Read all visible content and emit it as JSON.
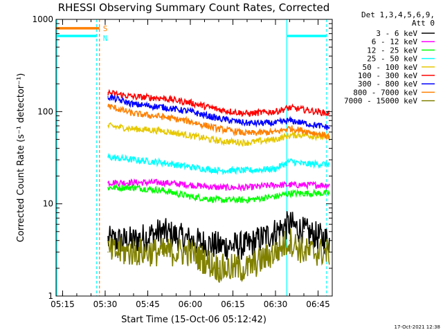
{
  "chart_data": {
    "type": "line",
    "title": "RHESSI Observing Summary Count Rates, Corrected",
    "xlabel": "Start Time (15-Oct-06 05:12:42)",
    "ylabel": "Corrected Count Rate (s⁻¹ detector⁻¹)",
    "y_scale": "log",
    "ylim": [
      1,
      1000
    ],
    "xlim": [
      "05:12:42",
      "06:50:00"
    ],
    "x_ticks": [
      "05:15",
      "05:30",
      "05:45",
      "06:00",
      "06:15",
      "06:30",
      "06:45"
    ],
    "y_ticks": [
      "1",
      "10",
      "100",
      "1000"
    ],
    "grid": false,
    "legend_position": "top-right",
    "legend_header": [
      "Det 1,3,4,5,6,9,",
      "Att 0"
    ],
    "series": [
      {
        "name": "3 - 6 keV",
        "color": "#000000",
        "x": [
          "05:31",
          "05:40",
          "05:50",
          "06:00",
          "06:10",
          "06:20",
          "06:30",
          "06:35",
          "06:40",
          "06:49"
        ],
        "values": [
          4,
          4,
          5,
          4,
          3.5,
          3.5,
          5,
          6,
          5,
          4
        ]
      },
      {
        "name": "6 - 12 keV",
        "color": "#ff00ff",
        "x": [
          "05:31",
          "05:40",
          "05:50",
          "06:00",
          "06:10",
          "06:20",
          "06:30",
          "06:35",
          "06:40",
          "06:49"
        ],
        "values": [
          17,
          17,
          17,
          16,
          15,
          15,
          16,
          16,
          16,
          16
        ]
      },
      {
        "name": "12 - 25 keV",
        "color": "#00ff00",
        "x": [
          "05:31",
          "05:40",
          "05:50",
          "06:00",
          "06:10",
          "06:20",
          "06:30",
          "06:35",
          "06:40",
          "06:49"
        ],
        "values": [
          15,
          15,
          14,
          12,
          11,
          11,
          12,
          13,
          13,
          13
        ]
      },
      {
        "name": "25 - 50 keV",
        "color": "#00ffff",
        "x": [
          "05:31",
          "05:40",
          "05:50",
          "06:00",
          "06:10",
          "06:20",
          "06:30",
          "06:35",
          "06:40",
          "06:49"
        ],
        "values": [
          32,
          30,
          28,
          25,
          23,
          23,
          24,
          29,
          27,
          27
        ]
      },
      {
        "name": "50 - 100 keV",
        "color": "#e6c800",
        "x": [
          "05:31",
          "05:40",
          "05:50",
          "06:00",
          "06:10",
          "06:20",
          "06:30",
          "06:35",
          "06:40",
          "06:49"
        ],
        "values": [
          70,
          65,
          62,
          55,
          48,
          46,
          50,
          55,
          56,
          52
        ]
      },
      {
        "name": "100 - 300 keV",
        "color": "#ff0000",
        "x": [
          "05:31",
          "05:40",
          "05:50",
          "06:00",
          "06:10",
          "06:20",
          "06:30",
          "06:35",
          "06:40",
          "06:49"
        ],
        "values": [
          160,
          145,
          140,
          125,
          105,
          95,
          100,
          110,
          105,
          95
        ]
      },
      {
        "name": "300 - 800 keV",
        "color": "#0000ff",
        "x": [
          "05:31",
          "05:40",
          "05:50",
          "06:00",
          "06:10",
          "06:20",
          "06:30",
          "06:35",
          "06:40",
          "06:49"
        ],
        "values": [
          145,
          120,
          112,
          100,
          84,
          75,
          75,
          80,
          75,
          67
        ]
      },
      {
        "name": "800 - 7000 keV",
        "color": "#ff8000",
        "x": [
          "05:31",
          "05:40",
          "05:50",
          "06:00",
          "06:10",
          "06:20",
          "06:30",
          "06:35",
          "06:40",
          "06:49"
        ],
        "values": [
          115,
          95,
          88,
          78,
          65,
          58,
          60,
          66,
          62,
          54
        ]
      },
      {
        "name": "7000 - 15000 keV",
        "color": "#808000",
        "x": [
          "05:31",
          "05:40",
          "05:50",
          "06:00",
          "06:10",
          "06:20",
          "06:30",
          "06:35",
          "06:40",
          "06:49"
        ],
        "values": [
          3,
          3,
          3,
          3,
          2,
          2,
          3,
          4,
          3,
          3
        ]
      }
    ],
    "annotations": [
      {
        "text": "S",
        "color": "#ff8000",
        "near_x": "05:28"
      },
      {
        "text": "N",
        "color": "#00ffff",
        "near_x": "05:28"
      }
    ],
    "flag_bars": [
      {
        "color": "#ff8000",
        "x_start": "05:12:42",
        "x_end": "05:28",
        "y": 800
      },
      {
        "color": "#00ffff",
        "x_start": "05:12:42",
        "x_end": "05:27",
        "y": 660
      },
      {
        "color": "#00ffff",
        "x_start": "06:34",
        "x_end": "06:48",
        "y": 660
      }
    ],
    "vertical_lines": [
      {
        "x": "05:13",
        "color": "#00ffff",
        "style": "solid"
      },
      {
        "x": "05:27",
        "color": "#00ffff",
        "style": "dashed"
      },
      {
        "x": "05:28",
        "color": "#ff8000",
        "style": "dashed"
      },
      {
        "x": "06:34",
        "color": "#00ffff",
        "style": "solid"
      },
      {
        "x": "06:48",
        "color": "#00ffff",
        "style": "dashed"
      }
    ]
  },
  "footer": {
    "timestamp": "17-Oct-2021 12:38"
  }
}
